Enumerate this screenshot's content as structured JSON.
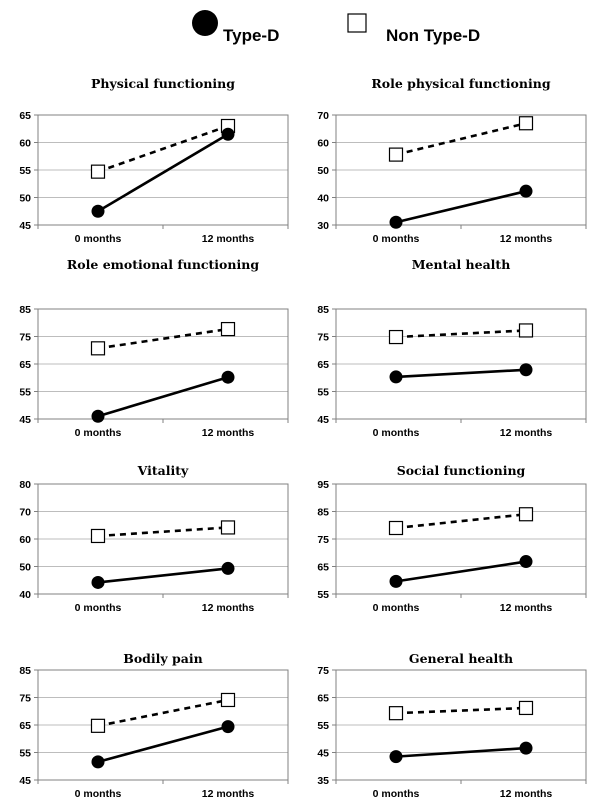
{
  "legend": [
    {
      "label": "Type-D",
      "marker": "filled-circle",
      "line": "solid"
    },
    {
      "label": "Non Type-D",
      "marker": "open-square",
      "line": "dashed"
    }
  ],
  "colors": {
    "type_d": "#000000",
    "non_type_d": "#000000",
    "grid": "#bdbdbd",
    "axis": "#808080"
  },
  "chart_data": [
    {
      "type": "line",
      "title": "Physical functioning",
      "categories": [
        "0 months",
        "12 months"
      ],
      "ylim": [
        45,
        65
      ],
      "yticks": [
        45,
        50,
        55,
        60,
        65
      ],
      "grid": true,
      "series": [
        {
          "name": "Type-D",
          "values": [
            47.5,
            61.5
          ]
        },
        {
          "name": "Non Type-D",
          "values": [
            54.7,
            63
          ]
        }
      ]
    },
    {
      "type": "line",
      "title": "Role physical functioning",
      "categories": [
        "0 months",
        "12 months"
      ],
      "ylim": [
        30,
        70
      ],
      "yticks": [
        30,
        40,
        50,
        60,
        70
      ],
      "grid": true,
      "series": [
        {
          "name": "Type-D",
          "values": [
            31,
            42.3
          ]
        },
        {
          "name": "Non Type-D",
          "values": [
            55.6,
            67
          ]
        }
      ]
    },
    {
      "type": "line",
      "title": "Role emotional  functioning",
      "categories": [
        "0 months",
        "12 months"
      ],
      "ylim": [
        45,
        85
      ],
      "yticks": [
        45,
        55,
        65,
        75,
        85
      ],
      "grid": true,
      "series": [
        {
          "name": "Type-D",
          "values": [
            46,
            60.2
          ]
        },
        {
          "name": "Non Type-D",
          "values": [
            70.7,
            77.7
          ]
        }
      ]
    },
    {
      "type": "line",
      "title": "Mental health",
      "categories": [
        "0 months",
        "12 months"
      ],
      "ylim": [
        45,
        85
      ],
      "yticks": [
        45,
        55,
        65,
        75,
        85
      ],
      "grid": true,
      "series": [
        {
          "name": "Type-D",
          "values": [
            60.3,
            62.9
          ]
        },
        {
          "name": "Non Type-D",
          "values": [
            74.8,
            77.2
          ]
        }
      ]
    },
    {
      "type": "line",
      "title": "Vitality",
      "categories": [
        "0 months",
        "12 months"
      ],
      "ylim": [
        40,
        80
      ],
      "yticks": [
        40,
        50,
        60,
        70,
        80
      ],
      "grid": true,
      "series": [
        {
          "name": "Type-D",
          "values": [
            44.2,
            49.3
          ]
        },
        {
          "name": "Non Type-D",
          "values": [
            61.1,
            64.2
          ]
        }
      ]
    },
    {
      "type": "line",
      "title": "Social functioning",
      "categories": [
        "0 months",
        "12 months"
      ],
      "ylim": [
        55,
        95
      ],
      "yticks": [
        55,
        65,
        75,
        85,
        95
      ],
      "grid": true,
      "series": [
        {
          "name": "Type-D",
          "values": [
            59.6,
            66.8
          ]
        },
        {
          "name": "Non Type-D",
          "values": [
            79,
            84
          ]
        }
      ]
    },
    {
      "type": "line",
      "title": "Bodily pain",
      "categories": [
        "0 months",
        "12 months"
      ],
      "ylim": [
        45,
        85
      ],
      "yticks": [
        45,
        55,
        65,
        75,
        85
      ],
      "grid": true,
      "series": [
        {
          "name": "Type-D",
          "values": [
            51.6,
            64.4
          ]
        },
        {
          "name": "Non Type-D",
          "values": [
            64.7,
            74.1
          ]
        }
      ]
    },
    {
      "type": "line",
      "title": "General health",
      "categories": [
        "0 months",
        "12 months"
      ],
      "ylim": [
        35,
        75
      ],
      "yticks": [
        35,
        45,
        55,
        65,
        75
      ],
      "grid": true,
      "series": [
        {
          "name": "Type-D",
          "values": [
            43.5,
            46.6
          ]
        },
        {
          "name": "Non Type-D",
          "values": [
            59.3,
            61.2
          ]
        }
      ]
    }
  ]
}
